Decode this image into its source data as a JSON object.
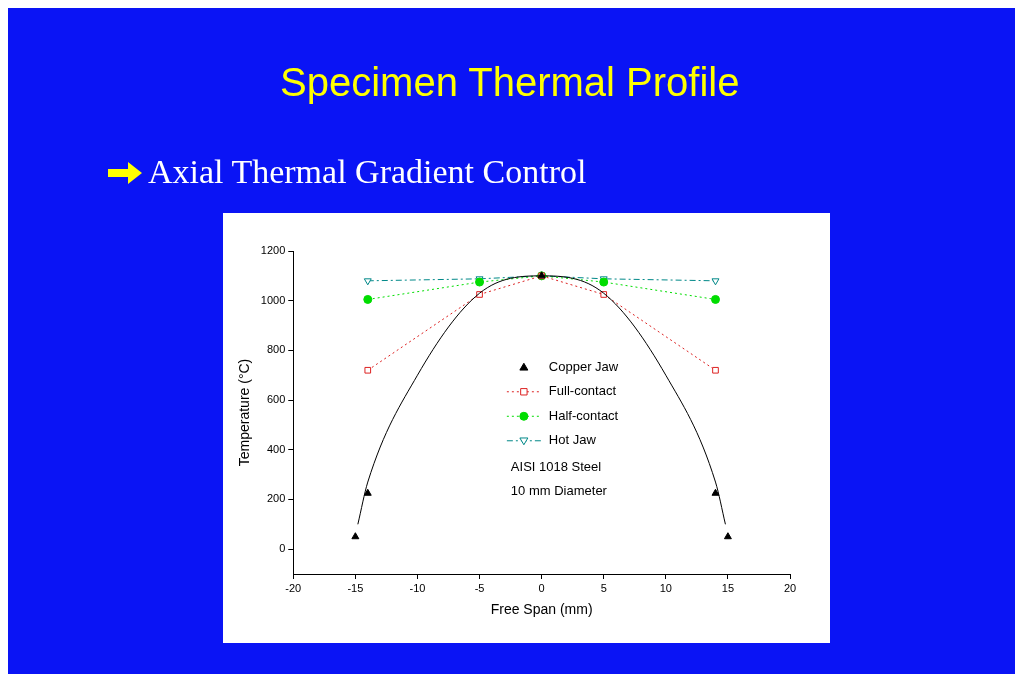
{
  "chart_data": {
    "type": "line",
    "title": "Specimen Thermal Profile",
    "subtitle": "Axial Thermal Gradient Control",
    "xlabel": "Free Span (mm)",
    "ylabel": "Temperature (°C)",
    "xlim": [
      -20,
      20
    ],
    "xticks": [
      -20,
      -15,
      -10,
      -5,
      0,
      5,
      10,
      15,
      20
    ],
    "ylim": [
      -100,
      1200
    ],
    "yticks": [
      0,
      200,
      400,
      600,
      800,
      1000,
      1200
    ],
    "grid": false,
    "legend": "center",
    "series": [
      {
        "name": "Copper Jaw",
        "color": "#000000",
        "marker": "triangle",
        "type": "scatter",
        "x": [
          -15,
          -14,
          0,
          14,
          15
        ],
        "values": [
          50,
          225,
          1100,
          225,
          50
        ]
      },
      {
        "color": "#000000",
        "marker": "none",
        "line_style": "solid",
        "x": [
          -14.8,
          -14,
          -10,
          -5,
          0,
          5,
          10,
          14,
          14.8
        ],
        "values": [
          100,
          270,
          700,
          1030,
          1100,
          1030,
          700,
          270,
          100
        ]
      },
      {
        "name": "Full-contact",
        "color": "#dd2222",
        "marker": "square",
        "line_style": "dotted",
        "x": [
          -14,
          -5,
          0,
          5,
          14
        ],
        "values": [
          720,
          1025,
          1100,
          1025,
          720
        ]
      },
      {
        "name": "Half-contact",
        "color": "#00dd00",
        "marker": "circle",
        "line_style": "dotted",
        "x": [
          -14,
          -5,
          0,
          5,
          14
        ],
        "values": [
          1005,
          1075,
          1100,
          1075,
          1005
        ]
      },
      {
        "name": "Hot Jaw",
        "color": "#008888",
        "marker": "triangle-down",
        "line_style": "dashed",
        "x": [
          -14,
          -5,
          0,
          5,
          14
        ],
        "values": [
          1080,
          1088,
          1100,
          1088,
          1080
        ]
      }
    ],
    "annotations": [
      "AISI 1018 Steel",
      "10 mm Diameter"
    ]
  }
}
